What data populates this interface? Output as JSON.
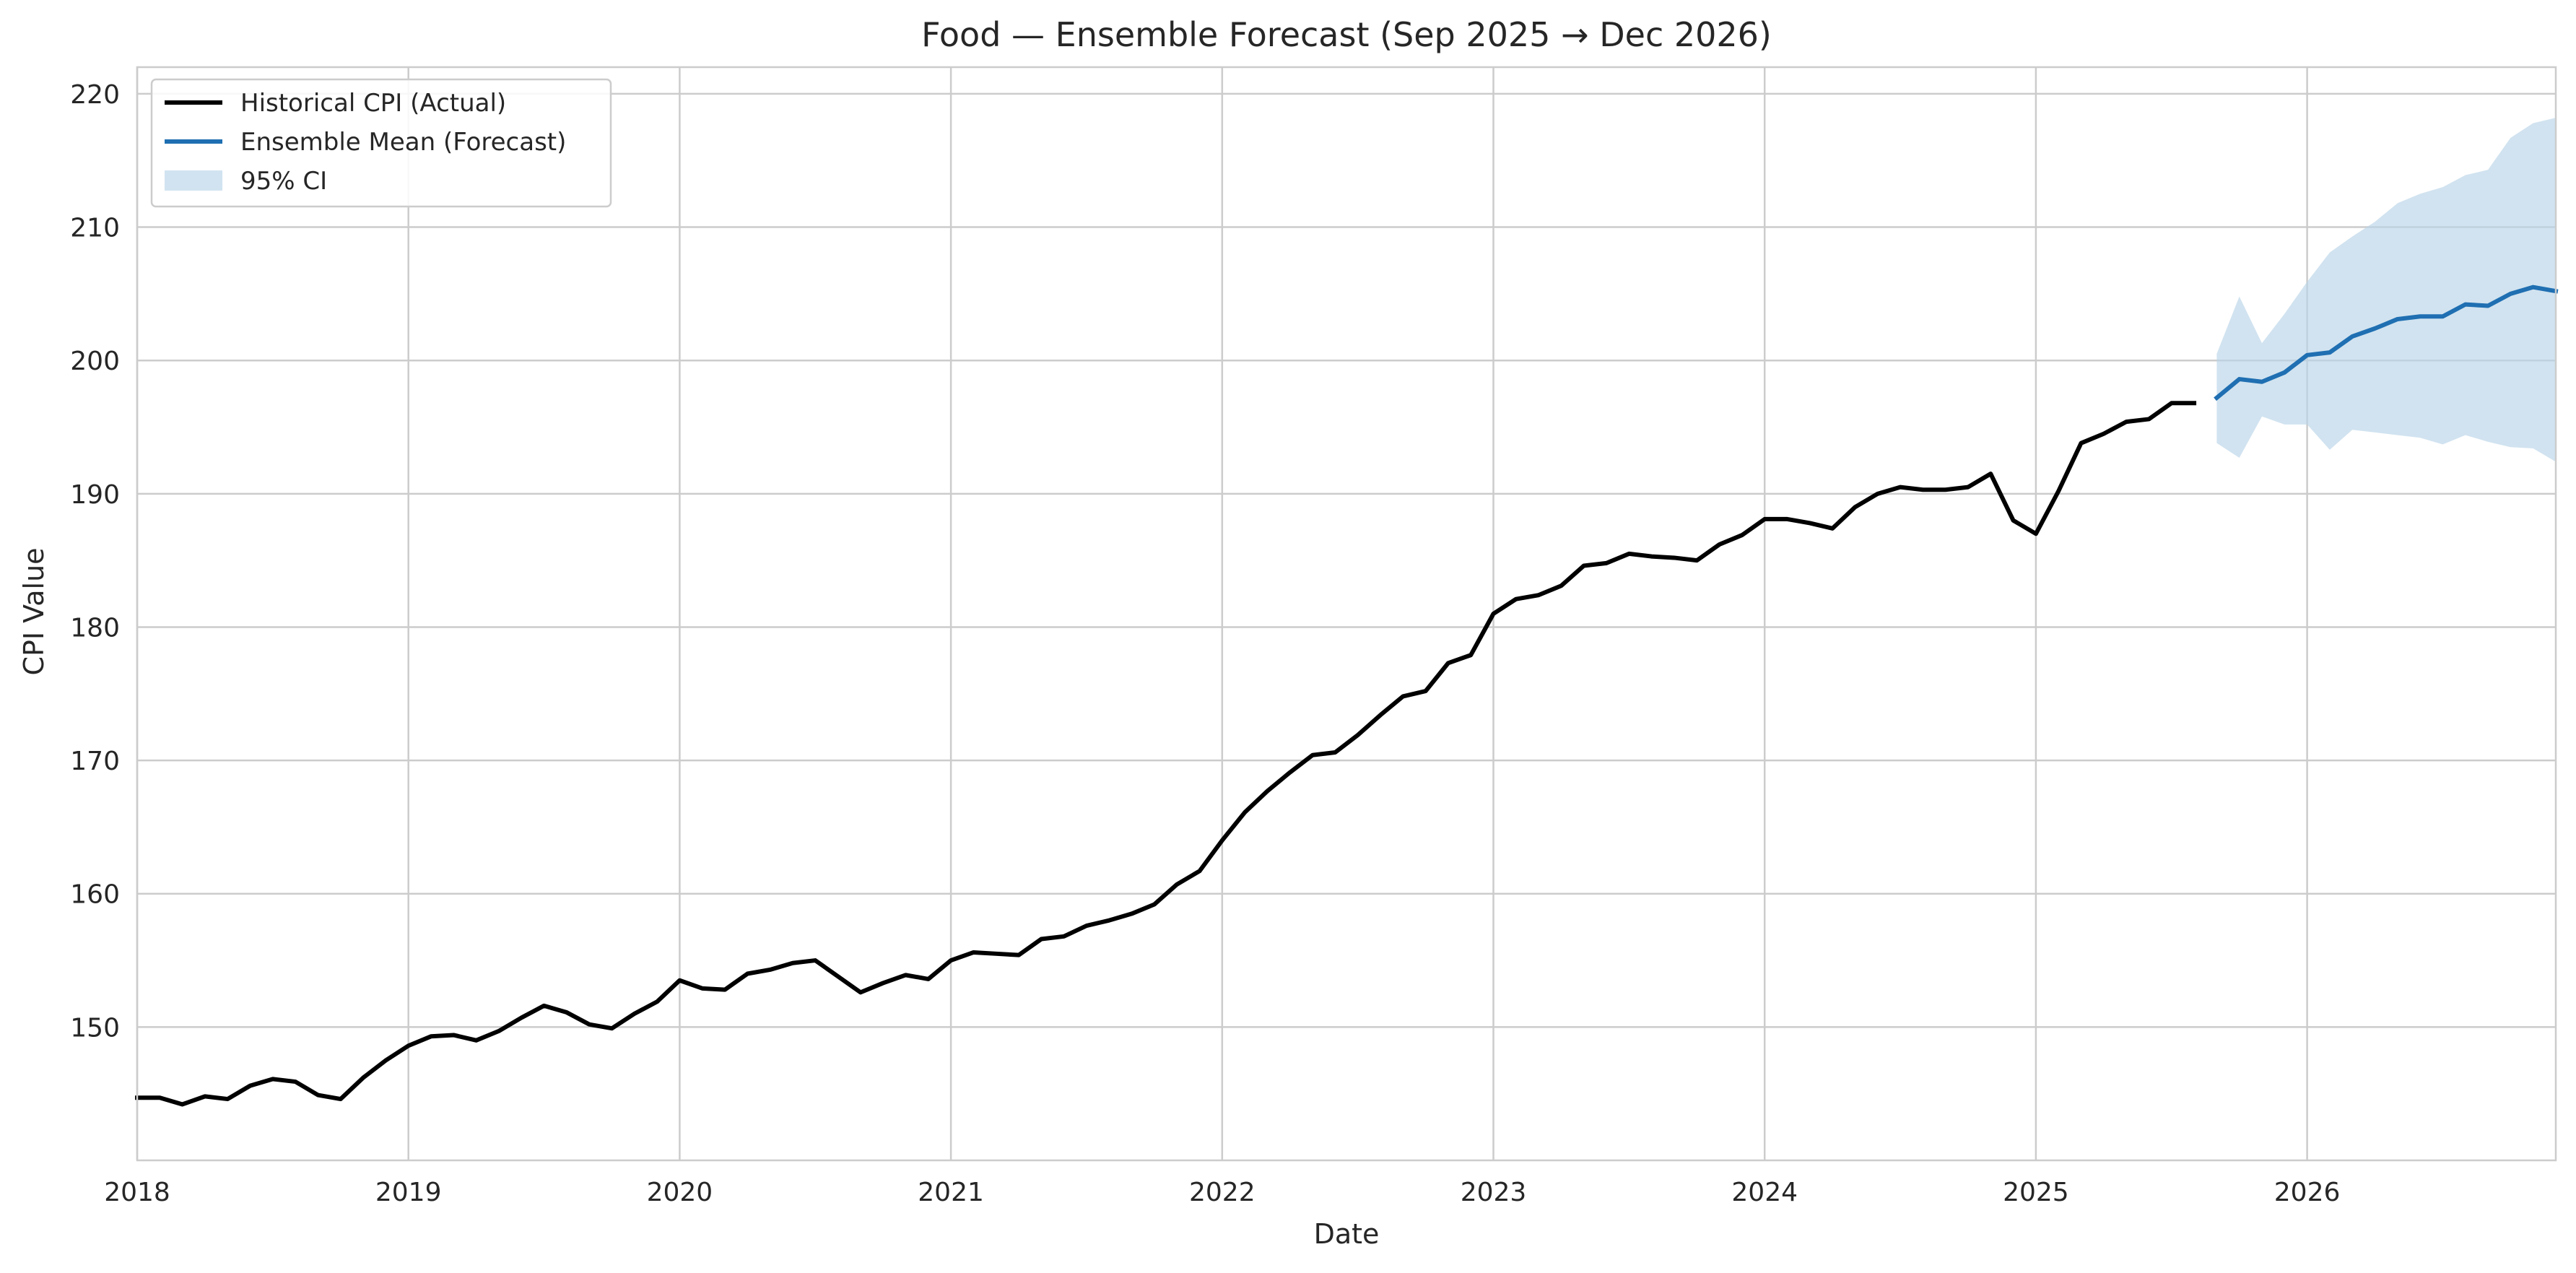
{
  "chart_data": {
    "type": "line",
    "title": "Food — Ensemble Forecast (Sep 2025 → Dec 2026)",
    "xlabel": "Date",
    "ylabel": "CPI Value",
    "xlim": [
      "2018-01",
      "2026-12"
    ],
    "ylim": [
      140,
      222
    ],
    "x_ticks": [
      "2018",
      "2019",
      "2020",
      "2021",
      "2022",
      "2023",
      "2024",
      "2025",
      "2026"
    ],
    "y_ticks": [
      150,
      160,
      170,
      180,
      190,
      200,
      210,
      220
    ],
    "grid": true,
    "legend_position": "top-left",
    "colors": {
      "historical": "#000000",
      "forecast": "#1f6fb2",
      "ci": "#b8d4e8",
      "grid": "#cccccc",
      "frame": "#cccccc"
    },
    "series": [
      {
        "name": "Historical CPI (Actual)",
        "kind": "line",
        "color": "#000000",
        "x": [
          "2018-01",
          "2018-02",
          "2018-03",
          "2018-04",
          "2018-05",
          "2018-06",
          "2018-07",
          "2018-08",
          "2018-09",
          "2018-10",
          "2018-11",
          "2018-12",
          "2019-01",
          "2019-02",
          "2019-03",
          "2019-04",
          "2019-05",
          "2019-06",
          "2019-07",
          "2019-08",
          "2019-09",
          "2019-10",
          "2019-11",
          "2019-12",
          "2020-01",
          "2020-02",
          "2020-03",
          "2020-04",
          "2020-05",
          "2020-06",
          "2020-07",
          "2020-08",
          "2020-09",
          "2020-10",
          "2020-11",
          "2020-12",
          "2021-01",
          "2021-02",
          "2021-03",
          "2021-04",
          "2021-05",
          "2021-06",
          "2021-07",
          "2021-08",
          "2021-09",
          "2021-10",
          "2021-11",
          "2021-12",
          "2022-01",
          "2022-02",
          "2022-03",
          "2022-04",
          "2022-05",
          "2022-06",
          "2022-07",
          "2022-08",
          "2022-09",
          "2022-10",
          "2022-11",
          "2022-12",
          "2023-01",
          "2023-02",
          "2023-03",
          "2023-04",
          "2023-05",
          "2023-06",
          "2023-07",
          "2023-08",
          "2023-09",
          "2023-10",
          "2023-11",
          "2023-12",
          "2024-01",
          "2024-02",
          "2024-03",
          "2024-04",
          "2024-05",
          "2024-06",
          "2024-07",
          "2024-08",
          "2024-09",
          "2024-10",
          "2024-11",
          "2024-12",
          "2025-01",
          "2025-02",
          "2025-03",
          "2025-04",
          "2025-05",
          "2025-06",
          "2025-07",
          "2025-08"
        ],
        "y": [
          144.7,
          144.7,
          144.2,
          144.8,
          144.6,
          145.6,
          146.1,
          145.9,
          144.9,
          144.6,
          146.2,
          147.5,
          148.6,
          149.3,
          149.4,
          149.0,
          149.7,
          150.7,
          151.6,
          151.1,
          150.2,
          149.9,
          151.0,
          151.9,
          153.5,
          152.9,
          152.8,
          154.0,
          154.3,
          154.8,
          155.0,
          153.8,
          152.6,
          153.3,
          153.9,
          153.6,
          155.0,
          155.6,
          155.5,
          155.4,
          156.6,
          156.8,
          157.6,
          158.0,
          158.5,
          159.2,
          160.7,
          161.7,
          164.0,
          166.1,
          167.7,
          169.1,
          170.4,
          170.6,
          171.9,
          173.4,
          174.8,
          175.2,
          177.3,
          177.9,
          181.0,
          182.1,
          182.4,
          183.1,
          184.6,
          184.8,
          185.5,
          185.3,
          185.2,
          185.0,
          186.2,
          186.9,
          188.1,
          188.1,
          187.8,
          187.4,
          189.0,
          190.0,
          190.5,
          190.3,
          190.3,
          190.5,
          191.5,
          188.0,
          187.0,
          190.2,
          193.8,
          194.5,
          195.4,
          195.6,
          196.8,
          196.8
        ]
      },
      {
        "name": "Ensemble Mean (Forecast)",
        "kind": "line",
        "color": "#1f6fb2",
        "x": [
          "2025-09",
          "2025-10",
          "2025-11",
          "2025-12",
          "2026-01",
          "2026-02",
          "2026-03",
          "2026-04",
          "2026-05",
          "2026-06",
          "2026-07",
          "2026-08",
          "2026-09",
          "2026-10",
          "2026-11",
          "2026-12"
        ],
        "y": [
          197.2,
          198.6,
          198.4,
          199.1,
          200.4,
          200.6,
          201.8,
          202.4,
          203.1,
          203.3,
          203.3,
          204.2,
          204.1,
          205.0,
          205.5,
          205.2
        ]
      },
      {
        "name": "95% CI",
        "kind": "band",
        "color": "#b8d4e8",
        "x": [
          "2025-09",
          "2025-10",
          "2025-11",
          "2025-12",
          "2026-01",
          "2026-02",
          "2026-03",
          "2026-04",
          "2026-05",
          "2026-06",
          "2026-07",
          "2026-08",
          "2026-09",
          "2026-10",
          "2026-11",
          "2026-12"
        ],
        "lower": [
          193.8,
          192.7,
          195.8,
          195.2,
          195.2,
          193.3,
          194.8,
          194.6,
          194.4,
          194.2,
          193.7,
          194.4,
          193.9,
          193.5,
          193.4,
          192.4
        ],
        "upper": [
          200.5,
          204.8,
          201.3,
          203.5,
          205.9,
          208.1,
          209.3,
          210.4,
          211.8,
          212.5,
          213.0,
          213.9,
          214.3,
          216.7,
          217.8,
          218.2
        ]
      }
    ]
  }
}
